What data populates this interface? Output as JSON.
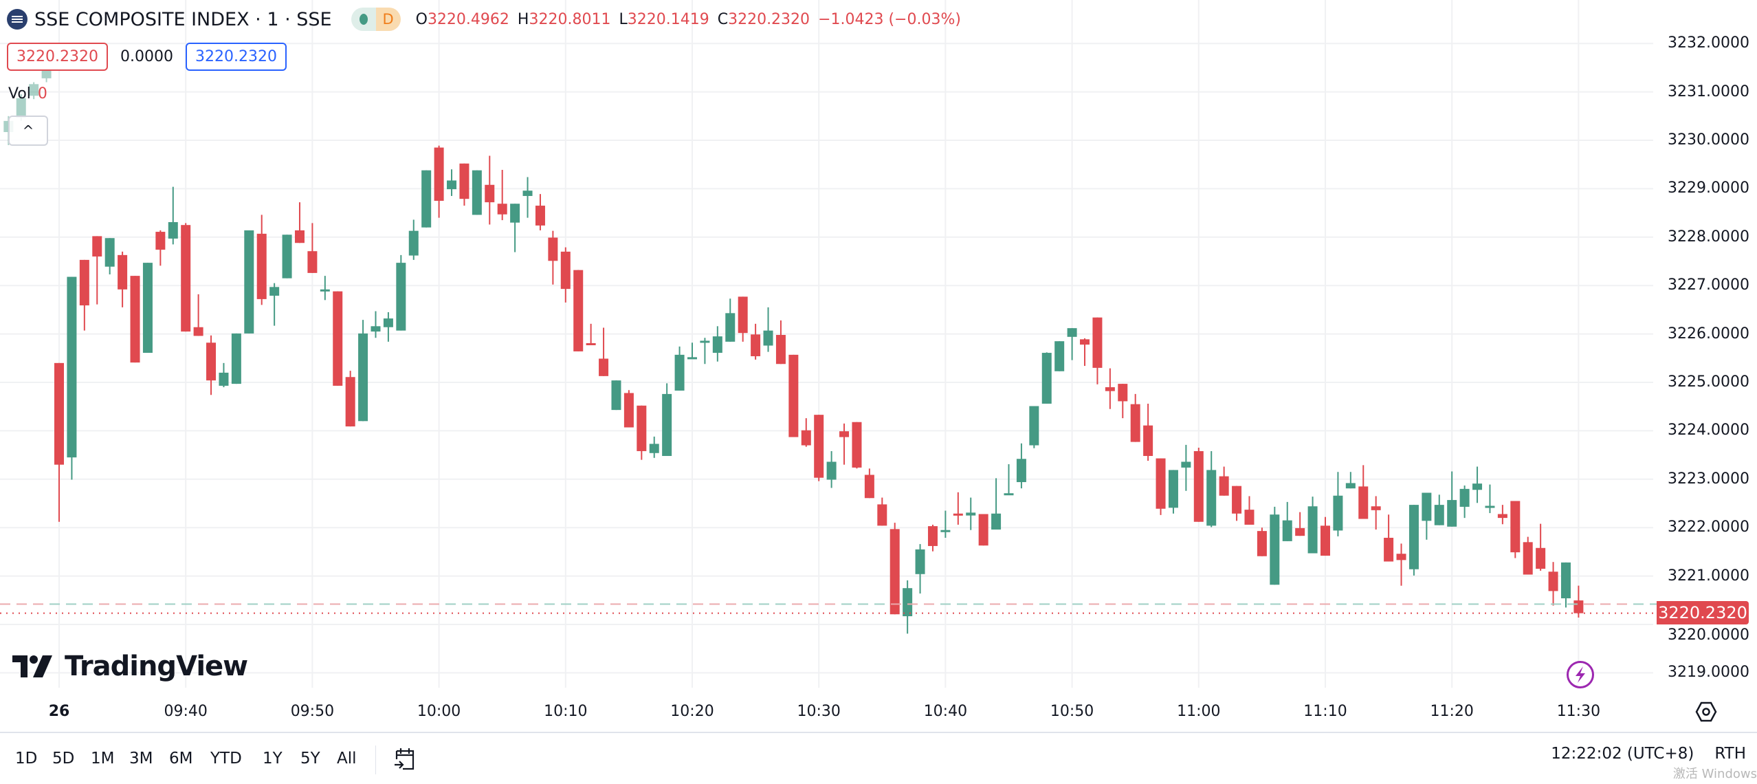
{
  "header": {
    "symbol_title": "SSE COMPOSITE INDEX · 1 · SSE",
    "market_status_letter": "D",
    "ohlc": {
      "o_label": "O",
      "o_value": "3220.4962",
      "h_label": "H",
      "h_value": "3220.8011",
      "l_label": "L",
      "l_value": "3220.1419",
      "c_label": "C",
      "c_value": "3220.2320",
      "change": "−1.0423 (−0.03%)"
    },
    "bid": "3220.2320",
    "spread": "0.0000",
    "ask": "3220.2320",
    "volume_label": "Vol",
    "volume_value": "0",
    "collapse_icon": "^"
  },
  "price_axis": {
    "labels": [
      "3232.0000",
      "3231.0000",
      "3230.0000",
      "3229.0000",
      "3228.0000",
      "3227.0000",
      "3226.0000",
      "3225.0000",
      "3224.0000",
      "3223.0000",
      "3222.0000",
      "3221.0000",
      "3220.0000",
      "3219.0000"
    ],
    "current_price": "3220.2320"
  },
  "time_axis": {
    "labels": [
      "26",
      "09:40",
      "09:50",
      "10:00",
      "10:10",
      "10:20",
      "10:30",
      "10:40",
      "10:50",
      "11:00",
      "11:10",
      "11:20",
      "11:30"
    ]
  },
  "branding": {
    "logo_text": "TradingView"
  },
  "bottom_bar": {
    "ranges": [
      "1D",
      "5D",
      "1M",
      "3M",
      "6M",
      "YTD",
      "1Y",
      "5Y",
      "All"
    ],
    "clock": "12:22:02 (UTC+8)",
    "session": "RTH",
    "watermark": "激活 Windows"
  },
  "colors": {
    "up": "#459a84",
    "down": "#e0494f",
    "accent": "#2962ff",
    "lightning": "#9c27b0"
  },
  "chart_data": {
    "type": "candlestick",
    "interval_minutes": 1,
    "x_start": "09:30",
    "x_end": "11:30",
    "ylim": [
      3218.6,
      3232.9
    ],
    "grid": true,
    "previous_session_tail": [
      [
        3230.17,
        3230.5,
        3229.9,
        3230.4
      ],
      [
        3230.47,
        3230.95,
        3230.4,
        3230.87
      ],
      [
        3230.92,
        3231.2,
        3230.85,
        3231.16
      ],
      [
        3231.28,
        3231.5,
        3231.2,
        3231.46
      ]
    ],
    "ohlc_fields": [
      "open",
      "high",
      "low",
      "close"
    ],
    "ohlc": [
      [
        3225.4,
        3225.4,
        3222.12,
        3223.3
      ],
      [
        3223.45,
        3227.18,
        3222.99,
        3227.18
      ],
      [
        3227.53,
        3227.53,
        3226.07,
        3226.59
      ],
      [
        3228.02,
        3228.02,
        3226.61,
        3227.6
      ],
      [
        3227.39,
        3227.98,
        3227.23,
        3227.98
      ],
      [
        3227.63,
        3227.7,
        3226.55,
        3226.92
      ],
      [
        3227.2,
        3227.2,
        3225.41,
        3225.41
      ],
      [
        3225.61,
        3227.47,
        3225.61,
        3227.47
      ],
      [
        3228.11,
        3228.14,
        3227.41,
        3227.74
      ],
      [
        3227.97,
        3229.04,
        3227.85,
        3228.31
      ],
      [
        3228.25,
        3228.29,
        3226.05,
        3226.05
      ],
      [
        3226.14,
        3226.82,
        3225.96,
        3225.96
      ],
      [
        3225.82,
        3225.97,
        3224.74,
        3225.04
      ],
      [
        3224.93,
        3225.4,
        3224.9,
        3225.2
      ],
      [
        3224.97,
        3226.01,
        3224.97,
        3226.01
      ],
      [
        3226.01,
        3228.14,
        3226.01,
        3228.14
      ],
      [
        3228.07,
        3228.46,
        3226.6,
        3226.72
      ],
      [
        3226.79,
        3227.05,
        3226.17,
        3226.97
      ],
      [
        3227.15,
        3228.05,
        3227.15,
        3228.05
      ],
      [
        3228.14,
        3228.72,
        3227.88,
        3227.88
      ],
      [
        3227.71,
        3228.29,
        3227.26,
        3227.26
      ],
      [
        3226.89,
        3227.2,
        3226.7,
        3226.92
      ],
      [
        3226.88,
        3226.88,
        3224.93,
        3224.93
      ],
      [
        3225.11,
        3225.24,
        3224.09,
        3224.09
      ],
      [
        3224.2,
        3226.29,
        3224.2,
        3226.01
      ],
      [
        3226.05,
        3226.47,
        3225.92,
        3226.16
      ],
      [
        3226.14,
        3226.45,
        3225.84,
        3226.32
      ],
      [
        3226.07,
        3227.63,
        3226.07,
        3227.47
      ],
      [
        3227.62,
        3228.36,
        3227.53,
        3228.13
      ],
      [
        3228.2,
        3229.38,
        3228.2,
        3229.38
      ],
      [
        3229.85,
        3229.89,
        3228.4,
        3228.75
      ],
      [
        3228.99,
        3229.4,
        3228.85,
        3229.17
      ],
      [
        3229.52,
        3229.52,
        3228.65,
        3228.79
      ],
      [
        3228.46,
        3229.38,
        3228.46,
        3229.38
      ],
      [
        3229.08,
        3229.68,
        3228.26,
        3228.72
      ],
      [
        3228.69,
        3229.39,
        3228.35,
        3228.47
      ],
      [
        3228.3,
        3228.69,
        3227.69,
        3228.69
      ],
      [
        3228.85,
        3229.24,
        3228.4,
        3228.96
      ],
      [
        3228.65,
        3228.89,
        3228.14,
        3228.24
      ],
      [
        3227.99,
        3228.13,
        3227.02,
        3227.51
      ],
      [
        3227.7,
        3227.79,
        3226.65,
        3226.93
      ],
      [
        3227.32,
        3227.32,
        3225.64,
        3225.64
      ],
      [
        3225.81,
        3226.21,
        3225.77,
        3225.77
      ],
      [
        3225.49,
        3226.13,
        3225.13,
        3225.13
      ],
      [
        3224.43,
        3225.04,
        3224.43,
        3225.04
      ],
      [
        3224.78,
        3224.84,
        3224.07,
        3224.07
      ],
      [
        3224.52,
        3224.52,
        3223.4,
        3223.58
      ],
      [
        3223.54,
        3223.88,
        3223.44,
        3223.73
      ],
      [
        3223.48,
        3224.98,
        3223.48,
        3224.76
      ],
      [
        3224.83,
        3225.74,
        3224.83,
        3225.57
      ],
      [
        3225.5,
        3225.82,
        3225.5,
        3225.52
      ],
      [
        3225.85,
        3225.92,
        3225.38,
        3225.86
      ],
      [
        3225.61,
        3226.16,
        3225.43,
        3225.95
      ],
      [
        3225.84,
        3226.73,
        3225.84,
        3226.43
      ],
      [
        3226.77,
        3226.77,
        3225.84,
        3226.02
      ],
      [
        3225.99,
        3226.21,
        3225.47,
        3225.54
      ],
      [
        3225.76,
        3226.55,
        3225.63,
        3226.07
      ],
      [
        3225.98,
        3226.28,
        3225.38,
        3225.38
      ],
      [
        3225.57,
        3225.57,
        3223.87,
        3223.87
      ],
      [
        3224.01,
        3224.26,
        3223.67,
        3223.7
      ],
      [
        3224.33,
        3224.33,
        3222.96,
        3223.03
      ],
      [
        3222.99,
        3223.58,
        3222.82,
        3223.36
      ],
      [
        3223.99,
        3224.15,
        3223.3,
        3223.87
      ],
      [
        3224.18,
        3224.18,
        3223.22,
        3223.24
      ],
      [
        3223.09,
        3223.22,
        3222.61,
        3222.61
      ],
      [
        3222.48,
        3222.62,
        3222.04,
        3222.04
      ],
      [
        3221.97,
        3222.1,
        3220.21,
        3220.21
      ],
      [
        3220.17,
        3220.91,
        3219.81,
        3220.75
      ],
      [
        3221.04,
        3221.66,
        3220.64,
        3221.55
      ],
      [
        3222.03,
        3222.06,
        3221.51,
        3221.62
      ],
      [
        3221.93,
        3222.35,
        3221.79,
        3221.95
      ],
      [
        3222.29,
        3222.73,
        3222.06,
        3222.25
      ],
      [
        3222.25,
        3222.62,
        3221.95,
        3222.31
      ],
      [
        3222.28,
        3222.28,
        3221.63,
        3221.63
      ],
      [
        3221.96,
        3223.02,
        3221.96,
        3222.29
      ],
      [
        3222.67,
        3223.31,
        3222.67,
        3222.71
      ],
      [
        3222.94,
        3223.74,
        3222.81,
        3223.42
      ],
      [
        3223.7,
        3224.51,
        3223.64,
        3224.51
      ],
      [
        3224.56,
        3225.62,
        3224.56,
        3225.61
      ],
      [
        3225.23,
        3225.85,
        3225.23,
        3225.85
      ],
      [
        3225.94,
        3226.12,
        3225.46,
        3226.12
      ],
      [
        3225.89,
        3225.91,
        3225.34,
        3225.78
      ],
      [
        3226.34,
        3226.34,
        3224.96,
        3225.3
      ],
      [
        3224.9,
        3225.29,
        3224.45,
        3224.82
      ],
      [
        3224.97,
        3224.97,
        3224.26,
        3224.61
      ],
      [
        3224.55,
        3224.76,
        3223.77,
        3223.77
      ],
      [
        3224.11,
        3224.56,
        3223.38,
        3223.48
      ],
      [
        3223.43,
        3223.43,
        3222.26,
        3222.39
      ],
      [
        3222.41,
        3223.19,
        3222.29,
        3223.19
      ],
      [
        3223.24,
        3223.71,
        3222.76,
        3223.36
      ],
      [
        3223.58,
        3223.65,
        3222.12,
        3222.12
      ],
      [
        3222.04,
        3223.58,
        3222.01,
        3223.19
      ],
      [
        3223.06,
        3223.26,
        3222.66,
        3222.66
      ],
      [
        3222.86,
        3222.86,
        3222.14,
        3222.29
      ],
      [
        3222.37,
        3222.65,
        3222.06,
        3222.06
      ],
      [
        3221.93,
        3222.0,
        3221.41,
        3221.41
      ],
      [
        3220.82,
        3222.43,
        3220.82,
        3222.27
      ],
      [
        3221.72,
        3222.53,
        3221.72,
        3222.15
      ],
      [
        3221.99,
        3222.32,
        3221.83,
        3221.83
      ],
      [
        3221.47,
        3222.64,
        3221.47,
        3222.44
      ],
      [
        3222.04,
        3222.22,
        3221.42,
        3221.42
      ],
      [
        3221.94,
        3223.15,
        3221.82,
        3222.66
      ],
      [
        3222.81,
        3223.15,
        3222.81,
        3222.92
      ],
      [
        3222.85,
        3223.29,
        3222.18,
        3222.18
      ],
      [
        3222.44,
        3222.65,
        3221.96,
        3222.36
      ],
      [
        3221.79,
        3222.27,
        3221.3,
        3221.3
      ],
      [
        3221.46,
        3221.67,
        3220.8,
        3221.33
      ],
      [
        3221.14,
        3222.47,
        3221.01,
        3222.47
      ],
      [
        3222.14,
        3222.72,
        3221.75,
        3222.72
      ],
      [
        3222.05,
        3222.68,
        3222.05,
        3222.47
      ],
      [
        3222.02,
        3223.16,
        3222.02,
        3222.57
      ],
      [
        3222.43,
        3222.87,
        3222.2,
        3222.8
      ],
      [
        3222.78,
        3223.26,
        3222.51,
        3222.91
      ],
      [
        3222.42,
        3222.89,
        3222.3,
        3222.45
      ],
      [
        3222.28,
        3222.47,
        3222.07,
        3222.2
      ],
      [
        3222.55,
        3222.55,
        3221.37,
        3221.49
      ],
      [
        3221.7,
        3221.81,
        3221.03,
        3221.03
      ],
      [
        3221.58,
        3222.08,
        3221.11,
        3221.15
      ],
      [
        3221.09,
        3221.29,
        3220.39,
        3220.69
      ],
      [
        3220.54,
        3221.28,
        3220.35,
        3221.28
      ],
      [
        3220.4962,
        3220.8011,
        3220.1419,
        3220.232
      ]
    ],
    "reference_line": 3220.42,
    "last_price": 3220.232
  }
}
